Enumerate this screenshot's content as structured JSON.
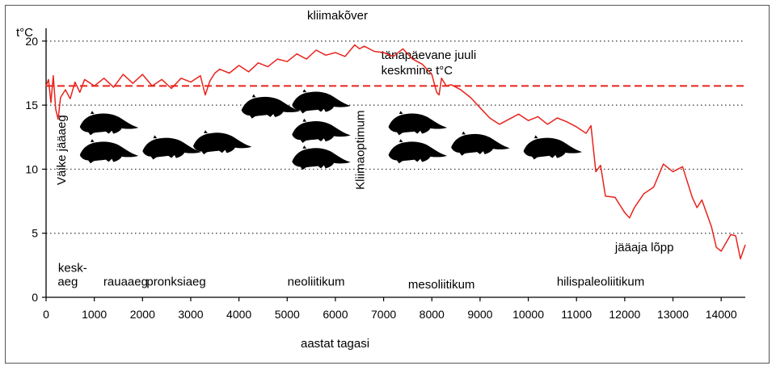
{
  "chart_data": {
    "type": "line",
    "title": "kliimakõver",
    "ylabel": "t°C",
    "xlabel": "aastat tagasi",
    "xlim": [
      0,
      14500
    ],
    "ylim": [
      0,
      21
    ],
    "xticks": [
      0,
      1000,
      2000,
      3000,
      4000,
      5000,
      6000,
      7000,
      8000,
      9000,
      10000,
      11000,
      12000,
      13000,
      14000
    ],
    "yticks": [
      0,
      5,
      10,
      15,
      20
    ],
    "grid": "horizontal dotted at 5, 10, 15, 20",
    "series": [
      {
        "color": "#e8231c",
        "x": [
          0,
          50,
          100,
          150,
          200,
          250,
          300,
          400,
          500,
          600,
          700,
          800,
          1000,
          1200,
          1400,
          1600,
          1800,
          2000,
          2200,
          2400,
          2600,
          2800,
          3000,
          3200,
          3300,
          3400,
          3500,
          3600,
          3800,
          4000,
          4200,
          4400,
          4600,
          4800,
          5000,
          5200,
          5400,
          5600,
          5800,
          6000,
          6200,
          6400,
          6500,
          6600,
          6800,
          7000,
          7200,
          7400,
          7600,
          7800,
          8000,
          8100,
          8150,
          8200,
          8300,
          8400,
          8600,
          8800,
          9000,
          9200,
          9400,
          9600,
          9800,
          10000,
          10200,
          10400,
          10600,
          10800,
          11000,
          11200,
          11300,
          11400,
          11500,
          11600,
          11800,
          12000,
          12100,
          12200,
          12400,
          12600,
          12800,
          13000,
          13200,
          13400,
          13500,
          13600,
          13800,
          13900,
          14000,
          14200,
          14300,
          14400,
          14500
        ],
        "y": [
          16.5,
          17.0,
          15.2,
          17.3,
          14.7,
          13.9,
          15.6,
          16.2,
          15.5,
          16.8,
          16.0,
          17.0,
          16.5,
          17.1,
          16.4,
          17.4,
          16.7,
          17.4,
          16.5,
          17.0,
          16.3,
          17.1,
          16.8,
          17.3,
          15.8,
          16.9,
          17.5,
          17.8,
          17.5,
          18.1,
          17.6,
          18.3,
          18.0,
          18.6,
          18.4,
          19.0,
          18.6,
          19.3,
          18.9,
          19.1,
          18.8,
          19.7,
          19.4,
          19.6,
          19.2,
          19.1,
          18.8,
          19.4,
          18.6,
          18.2,
          17.4,
          16.0,
          15.8,
          17.1,
          16.5,
          16.6,
          16.2,
          15.6,
          14.8,
          14.0,
          13.5,
          13.9,
          14.3,
          13.8,
          14.1,
          13.5,
          14.0,
          13.7,
          13.3,
          12.8,
          13.4,
          9.8,
          10.3,
          7.9,
          7.8,
          6.6,
          6.2,
          7.0,
          8.1,
          8.6,
          10.4,
          9.8,
          10.2,
          7.8,
          7.0,
          7.6,
          5.5,
          3.9,
          3.6,
          4.9,
          4.8,
          3.0,
          4.1
        ]
      }
    ],
    "reference_line": {
      "y": 16.5,
      "color": "#e8231c"
    },
    "annotations": [
      {
        "text": "tänapäevane juuli",
        "x": 6950,
        "y": 18.6
      },
      {
        "text": "keskmine t°C",
        "x": 6950,
        "y": 17.4
      },
      {
        "text": "jääaja lõpp",
        "x": 11800,
        "y": 3.6
      },
      {
        "text": "Väike jääaeg",
        "x": 400,
        "y": 11.5,
        "rotate": -90
      },
      {
        "text": "Kliimaoptimum",
        "x": 6600,
        "y": 11.5,
        "rotate": -90
      }
    ],
    "periods": [
      {
        "text": "kesk-",
        "x": 550,
        "y": 2.0
      },
      {
        "text": "aeg",
        "x": 450,
        "y": 0.9
      },
      {
        "text": "rauaaeg",
        "x": 1650,
        "y": 0.9
      },
      {
        "text": "pronksiaeg",
        "x": 2700,
        "y": 0.9
      },
      {
        "text": "neoliitikum",
        "x": 5600,
        "y": 0.9
      },
      {
        "text": "mesoliitikum",
        "x": 8200,
        "y": 0.7
      },
      {
        "text": "hilispaleoliitikum",
        "x": 11500,
        "y": 0.9
      }
    ],
    "beavers": [
      {
        "x": 1300,
        "y": 13.6
      },
      {
        "x": 1300,
        "y": 11.4
      },
      {
        "x": 2600,
        "y": 11.7
      },
      {
        "x": 3650,
        "y": 12.1
      },
      {
        "x": 4650,
        "y": 14.9
      },
      {
        "x": 5700,
        "y": 15.3
      },
      {
        "x": 5700,
        "y": 13.0
      },
      {
        "x": 5700,
        "y": 10.9
      },
      {
        "x": 7700,
        "y": 13.6
      },
      {
        "x": 7700,
        "y": 11.4
      },
      {
        "x": 9000,
        "y": 12.0
      },
      {
        "x": 10500,
        "y": 11.7
      }
    ]
  },
  "icons": {
    "marker": "beaver-icon"
  }
}
